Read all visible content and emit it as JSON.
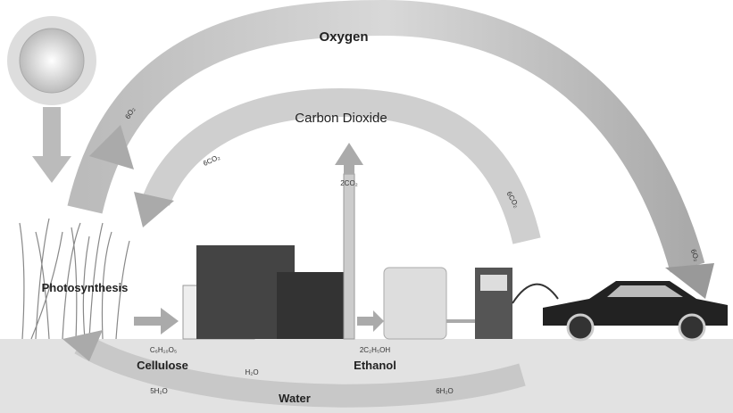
{
  "labels": {
    "oxygen": "Oxygen",
    "carbon_dioxide": "Carbon Dioxide",
    "photosynthesis": "Photosynthesis",
    "cellulose": "Cellulose",
    "ethanol": "Ethanol",
    "water": "Water"
  },
  "formulas": {
    "o2_up": "6O₂",
    "co2_left": "6CO₂",
    "co2_stack": "2CO₂",
    "co2_car": "6CO₂",
    "o2_car": "6O₂",
    "cellulose": "C₆H₁₀O₅",
    "ethanol": "2C₂H₅OH",
    "water_mid": "H₂O",
    "water_left": "5H₂O",
    "water_right": "6H₂O"
  }
}
